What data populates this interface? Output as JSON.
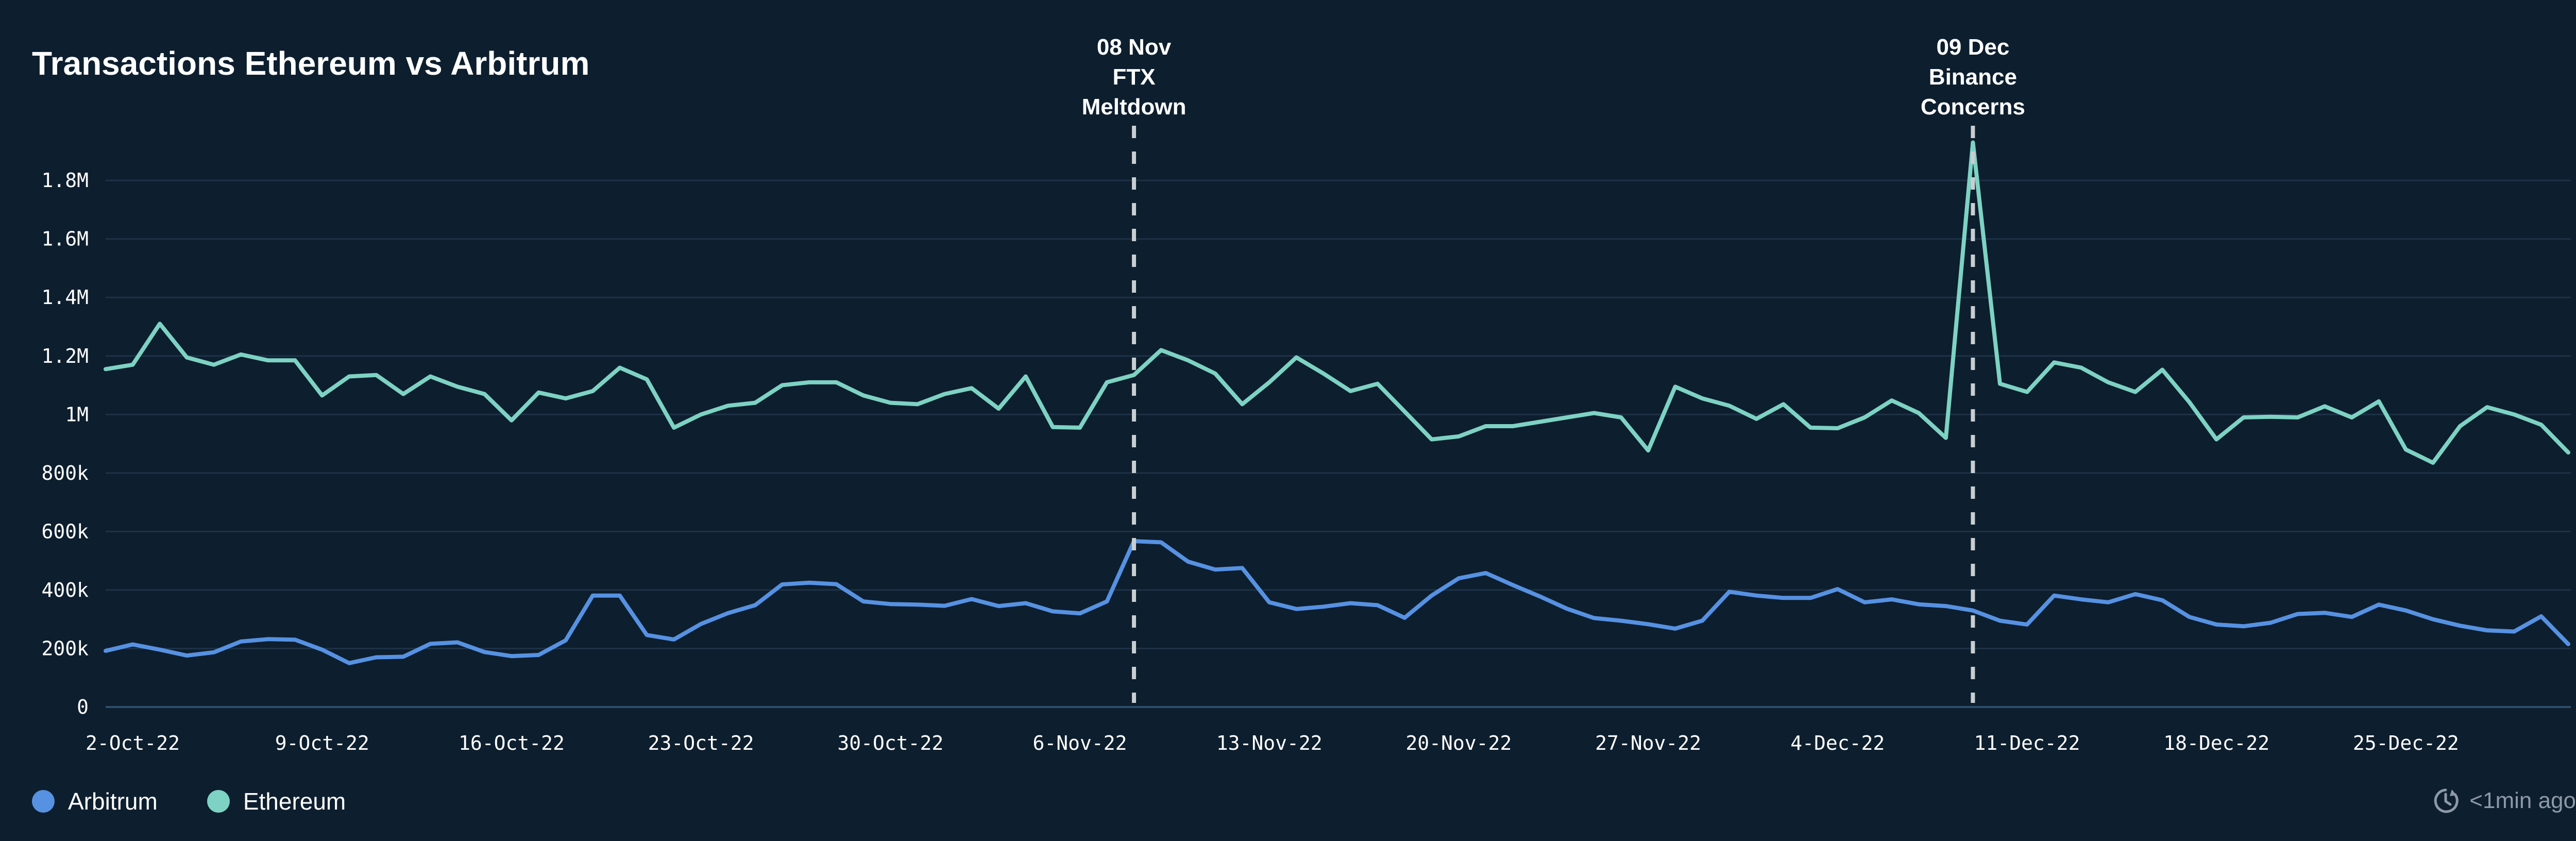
{
  "title": "Transactions Ethereum vs Arbitrum",
  "footer": {
    "updated": "<1min ago",
    "icon": "clock-refresh-icon"
  },
  "legend": [
    {
      "label": "Arbitrum",
      "color": "#5691e2"
    },
    {
      "label": "Ethereum",
      "color": "#7dd2c3"
    }
  ],
  "colors": {
    "background": "#0d1e2e",
    "grid": "#1d3246",
    "axis": "#2e4d6b",
    "annotation_line": "#c8ced2",
    "text": "#ffffff",
    "muted_text": "#8d99a6",
    "arbitrum": "#5691e2",
    "ethereum": "#7dd2c3"
  },
  "chart_data": {
    "type": "line",
    "title": "Transactions Ethereum vs Arbitrum",
    "x_start": "1-Oct-22",
    "x_end": "31-Dec-22",
    "n_points": 92,
    "ylim": [
      0,
      1950000
    ],
    "grid": "horizontal",
    "legend_position": "bottom-left",
    "y_ticks": [
      {
        "label": "0",
        "value": 0
      },
      {
        "label": "200k",
        "value": 200000
      },
      {
        "label": "400k",
        "value": 400000
      },
      {
        "label": "600k",
        "value": 600000
      },
      {
        "label": "800k",
        "value": 800000
      },
      {
        "label": "1M",
        "value": 1000000
      },
      {
        "label": "1.2M",
        "value": 1200000
      },
      {
        "label": "1.4M",
        "value": 1400000
      },
      {
        "label": "1.6M",
        "value": 1600000
      },
      {
        "label": "1.8M",
        "value": 1800000
      }
    ],
    "x_ticks": [
      {
        "index": 1,
        "label": "2-Oct-22"
      },
      {
        "index": 8,
        "label": "9-Oct-22"
      },
      {
        "index": 15,
        "label": "16-Oct-22"
      },
      {
        "index": 22,
        "label": "23-Oct-22"
      },
      {
        "index": 29,
        "label": "30-Oct-22"
      },
      {
        "index": 36,
        "label": "6-Nov-22"
      },
      {
        "index": 43,
        "label": "13-Nov-22"
      },
      {
        "index": 50,
        "label": "20-Nov-22"
      },
      {
        "index": 57,
        "label": "27-Nov-22"
      },
      {
        "index": 64,
        "label": "4-Dec-22"
      },
      {
        "index": 71,
        "label": "11-Dec-22"
      },
      {
        "index": 78,
        "label": "18-Dec-22"
      },
      {
        "index": 85,
        "label": "25-Dec-22"
      }
    ],
    "annotations": [
      {
        "lines": [
          "08 Nov",
          "FTX",
          "Meltdown"
        ],
        "index": 38
      },
      {
        "lines": [
          "09 Dec",
          "Binance",
          "Concerns"
        ],
        "index": 69
      }
    ],
    "series": [
      {
        "name": "Ethereum",
        "color": "#7dd2c3",
        "values": [
          1155000,
          1170000,
          1310000,
          1195000,
          1170000,
          1205000,
          1185000,
          1185000,
          1065000,
          1130000,
          1135000,
          1070000,
          1130000,
          1095000,
          1070000,
          980000,
          1075000,
          1055000,
          1080000,
          1160000,
          1120000,
          955000,
          1000000,
          1030000,
          1040000,
          1100000,
          1110000,
          1110000,
          1065000,
          1040000,
          1035000,
          1070000,
          1090000,
          1020000,
          1130000,
          957000,
          955000,
          1110000,
          1135000,
          1220000,
          1185000,
          1140000,
          1035000,
          1110000,
          1195000,
          1140000,
          1080000,
          1105000,
          1010000,
          915000,
          925000,
          960000,
          960000,
          975000,
          990000,
          1005000,
          990000,
          877000,
          1095000,
          1055000,
          1030000,
          985000,
          1035000,
          955000,
          953000,
          990000,
          1048000,
          1005000,
          920000,
          1930000,
          1105000,
          1077000,
          1178000,
          1160000,
          1110000,
          1077000,
          1153000,
          1042000,
          915000,
          990000,
          992000,
          990000,
          1028000,
          990000,
          1045000,
          880000,
          835000,
          960000,
          1025000,
          1000000,
          965000,
          870000
        ]
      },
      {
        "name": "Arbitrum",
        "color": "#5691e2",
        "values": [
          192000,
          214000,
          196000,
          176000,
          187000,
          224000,
          232000,
          230000,
          196000,
          150000,
          170000,
          172000,
          216000,
          221000,
          188000,
          174000,
          178000,
          228000,
          381000,
          381000,
          246000,
          231000,
          284000,
          321000,
          348000,
          419000,
          425000,
          420000,
          361000,
          352000,
          350000,
          346000,
          369000,
          345000,
          355000,
          327000,
          320000,
          361000,
          567000,
          563000,
          497000,
          470000,
          475000,
          358000,
          335000,
          343000,
          355000,
          348000,
          305000,
          381000,
          440000,
          458000,
          417000,
          378000,
          336000,
          304000,
          295000,
          283000,
          268000,
          295000,
          394000,
          381000,
          373000,
          373000,
          403000,
          358000,
          368000,
          351000,
          345000,
          330000,
          295000,
          282000,
          381000,
          368000,
          358000,
          386000,
          365000,
          308000,
          282000,
          276000,
          288000,
          318000,
          322000,
          308000,
          350000,
          330000,
          300000,
          278000,
          262000,
          258000,
          310000,
          215000
        ]
      }
    ]
  }
}
